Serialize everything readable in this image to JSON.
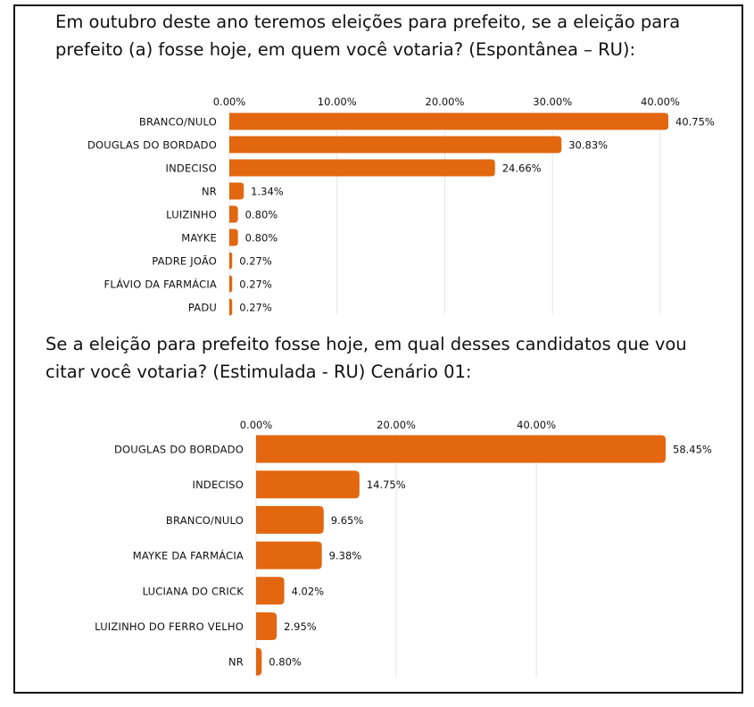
{
  "chart_data": [
    {
      "type": "bar",
      "orientation": "horizontal",
      "title": "Em outubro deste ano teremos eleições para prefeito, se a eleição para prefeito (a) fosse hoje, em quem você votaria? (Espontânea – RU):",
      "categories": [
        "BRANCO/NULO",
        "DOUGLAS DO BORDADO",
        "INDECISO",
        "NR",
        "LUIZINHO",
        "MAYKE",
        "PADRE JOÃO",
        "FLÁVIO DA FARMÁCIA",
        "PADU"
      ],
      "values": [
        40.75,
        30.83,
        24.66,
        1.34,
        0.8,
        0.8,
        0.27,
        0.27,
        0.27
      ],
      "value_labels": [
        "40.75%",
        "30.83%",
        "24.66%",
        "1.34%",
        "0.80%",
        "0.80%",
        "0.27%",
        "0.27%",
        "0.27%"
      ],
      "xticks": [
        "0.00%",
        "10.00%",
        "20.00%",
        "30.00%",
        "40.00%"
      ],
      "xtick_values": [
        0,
        10,
        20,
        30,
        40
      ],
      "xlim": [
        0,
        40.75
      ],
      "xlabel": "",
      "ylabel": "",
      "grid": true,
      "color": "#e2670f"
    },
    {
      "type": "bar",
      "orientation": "horizontal",
      "title": "Se a eleição para prefeito fosse hoje, em qual desses candidatos que vou citar você votaria? (Estimulada - RU) Cenário 01:",
      "categories": [
        "DOUGLAS DO BORDADO",
        "INDECISO",
        "BRANCO/NULO",
        "MAYKE DA FARMÁCIA",
        "LUCIANA DO CRICK",
        "LUIZINHO DO FERRO VELHO",
        "NR"
      ],
      "values": [
        58.45,
        14.75,
        9.65,
        9.38,
        4.02,
        2.95,
        0.8
      ],
      "value_labels": [
        "58.45%",
        "14.75%",
        "9.65%",
        "9.38%",
        "4.02%",
        "2.95%",
        "0.80%"
      ],
      "xticks": [
        "0.00%",
        "20.00%",
        "40.00%"
      ],
      "xtick_values": [
        0,
        20,
        40
      ],
      "xlim": [
        0,
        58.45
      ],
      "xlabel": "",
      "ylabel": "",
      "grid": true,
      "color": "#e2670f"
    }
  ]
}
